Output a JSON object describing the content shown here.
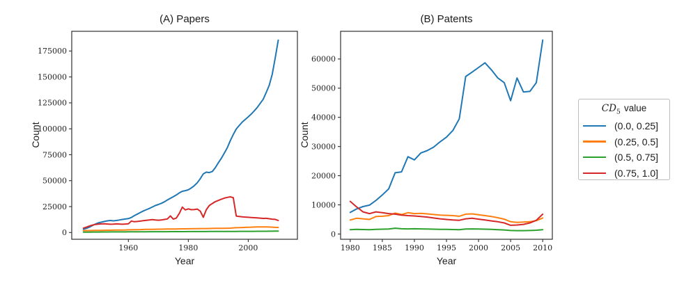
{
  "chart_data": [
    {
      "id": "papers",
      "type": "line",
      "title": "(A) Papers",
      "xlabel": "Year",
      "ylabel": "Count",
      "x_start": 1945,
      "x_step": 1,
      "x_end": 2010,
      "xlim": [
        1941.1,
        2016.4
      ],
      "ylim": [
        -6500,
        194000
      ],
      "xticks": [
        1960,
        1980,
        2000
      ],
      "yticks": [
        0,
        25000,
        50000,
        75000,
        100000,
        125000,
        150000,
        175000
      ],
      "grid": false,
      "legend_position": "outside-right",
      "series": [
        {
          "id": "cd5-0.00-0.25",
          "name": "(0.0, 0.25]",
          "color": "#1f77b4",
          "values": [
            3200,
            4000,
            5200,
            6700,
            8200,
            9300,
            10000,
            10700,
            11300,
            11600,
            11300,
            11600,
            12100,
            12600,
            13000,
            13400,
            14500,
            16300,
            17800,
            19300,
            20800,
            22000,
            23200,
            24600,
            26000,
            27000,
            28200,
            29600,
            31400,
            33000,
            34600,
            36200,
            38200,
            39800,
            40400,
            41200,
            43000,
            45200,
            48000,
            52000,
            56500,
            58200,
            57800,
            58800,
            62500,
            67100,
            71500,
            76500,
            81700,
            88500,
            94500,
            99800,
            103200,
            106500,
            109000,
            111500,
            114200,
            117300,
            120500,
            124500,
            128500,
            135100,
            142000,
            152700,
            168500,
            185500
          ]
        },
        {
          "id": "cd5-0.25-0.50",
          "name": "(0.25, 0.5]",
          "color": "#ff7f0e",
          "values": [
            1800,
            1850,
            1900,
            1950,
            2000,
            2050,
            2100,
            2150,
            2200,
            2250,
            2300,
            2350,
            2400,
            2450,
            2500,
            2600,
            2650,
            2700,
            2750,
            2850,
            2950,
            3000,
            3050,
            3100,
            3150,
            3200,
            3250,
            3300,
            3350,
            3400,
            3400,
            3450,
            3500,
            3550,
            3550,
            3600,
            3650,
            3700,
            3750,
            3800,
            3800,
            3850,
            3900,
            3950,
            4000,
            4000,
            4050,
            4100,
            4150,
            4250,
            4500,
            4600,
            4700,
            4800,
            4950,
            5100,
            5200,
            5300,
            5400,
            5400,
            5400,
            5400,
            5300,
            5200,
            5000,
            4900
          ]
        },
        {
          "id": "cd5-0.50-0.75",
          "name": "(0.5, 0.75]",
          "color": "#2ca02c",
          "values": [
            400,
            420,
            440,
            460,
            480,
            500,
            520,
            540,
            560,
            580,
            600,
            610,
            620,
            630,
            640,
            650,
            660,
            680,
            700,
            720,
            750,
            760,
            780,
            790,
            800,
            810,
            820,
            830,
            840,
            850,
            860,
            870,
            880,
            890,
            900,
            910,
            920,
            930,
            940,
            950,
            960,
            970,
            980,
            990,
            1000,
            1010,
            1020,
            1030,
            1040,
            1050,
            1100,
            1110,
            1120,
            1130,
            1140,
            1150,
            1160,
            1170,
            1180,
            1190,
            1200,
            1220,
            1250,
            1280,
            1320,
            1400
          ]
        },
        {
          "id": "cd5-0.75-1.00",
          "name": "(0.75, 1.0]",
          "color": "#d62728",
          "values": [
            4200,
            5200,
            6300,
            7200,
            7800,
            8100,
            8300,
            8400,
            8200,
            8000,
            8100,
            8300,
            8200,
            8000,
            8200,
            8400,
            11100,
            10400,
            10700,
            11000,
            11500,
            11800,
            12100,
            12400,
            12100,
            11900,
            12100,
            12600,
            13100,
            16000,
            12900,
            14000,
            18500,
            24500,
            21800,
            22800,
            22000,
            22200,
            22600,
            20500,
            14700,
            22000,
            26000,
            28000,
            29800,
            30900,
            32100,
            33100,
            33900,
            34400,
            33600,
            15900,
            15400,
            15100,
            14900,
            14700,
            14500,
            14300,
            14100,
            13900,
            13600,
            13700,
            13300,
            12900,
            12700,
            11600
          ]
        }
      ]
    },
    {
      "id": "patents",
      "type": "line",
      "title": "(B) Patents",
      "xlabel": "Year",
      "ylabel": "Count",
      "x_start": 1980,
      "x_step": 1,
      "x_end": 2010,
      "xlim": [
        1978.5,
        2011.5
      ],
      "ylim": [
        -1800,
        69500
      ],
      "xticks": [
        1980,
        1985,
        1990,
        1995,
        2000,
        2005,
        2010
      ],
      "yticks": [
        0,
        10000,
        20000,
        30000,
        40000,
        50000,
        60000
      ],
      "grid": false,
      "legend_position": "outside-right",
      "series": [
        {
          "id": "cd5-0.00-0.25",
          "name": "(0.0, 0.25]",
          "color": "#1f77b4",
          "values": [
            7400,
            8600,
            9400,
            9900,
            11500,
            13400,
            15500,
            21000,
            21300,
            26500,
            25400,
            27800,
            28600,
            29800,
            31600,
            33200,
            35500,
            39500,
            54000,
            55500,
            57100,
            58700,
            56300,
            53500,
            51900,
            45700,
            53500,
            48700,
            48900,
            51900,
            66500
          ]
        },
        {
          "id": "cd5-0.25-0.50",
          "name": "(0.25, 0.5]",
          "color": "#ff7f0e",
          "values": [
            4800,
            5400,
            5200,
            5000,
            6000,
            6100,
            6300,
            7200,
            6700,
            7300,
            7000,
            7100,
            6900,
            6700,
            6500,
            6400,
            6300,
            6100,
            6800,
            6900,
            6600,
            6300,
            6000,
            5600,
            5100,
            4200,
            4000,
            4100,
            4200,
            4600,
            5500
          ]
        },
        {
          "id": "cd5-0.50-0.75",
          "name": "(0.5, 0.75]",
          "color": "#2ca02c",
          "values": [
            1500,
            1600,
            1550,
            1500,
            1600,
            1650,
            1700,
            2000,
            1800,
            1750,
            1800,
            1750,
            1700,
            1650,
            1600,
            1600,
            1550,
            1500,
            1700,
            1750,
            1700,
            1650,
            1600,
            1500,
            1400,
            1200,
            1150,
            1150,
            1200,
            1300,
            1500
          ]
        },
        {
          "id": "cd5-0.75-1.00",
          "name": "(0.75, 1.0]",
          "color": "#d62728",
          "values": [
            11200,
            9300,
            7600,
            7000,
            7600,
            7300,
            7000,
            6800,
            6500,
            6300,
            6200,
            6000,
            5800,
            5500,
            5200,
            5000,
            4800,
            4700,
            5200,
            5400,
            5100,
            4800,
            4500,
            4200,
            3800,
            3000,
            3100,
            3300,
            3800,
            4700,
            6800
          ]
        }
      ]
    }
  ],
  "legend": {
    "title_prefix": "CD",
    "title_sub": "5",
    "title_suffix": "value",
    "entries": [
      {
        "id": "cd5-0.00-0.25",
        "label": "(0.0, 0.25]",
        "color": "#1f77b4"
      },
      {
        "id": "cd5-0.25-0.50",
        "label": "(0.25, 0.5]",
        "color": "#ff7f0e"
      },
      {
        "id": "cd5-0.50-0.75",
        "label": "(0.5, 0.75]",
        "color": "#2ca02c"
      },
      {
        "id": "cd5-0.75-1.00",
        "label": "(0.75, 1.0]",
        "color": "#d62728"
      }
    ]
  },
  "style": {
    "frame_color": "#2e2e2e",
    "background": "#ffffff"
  }
}
